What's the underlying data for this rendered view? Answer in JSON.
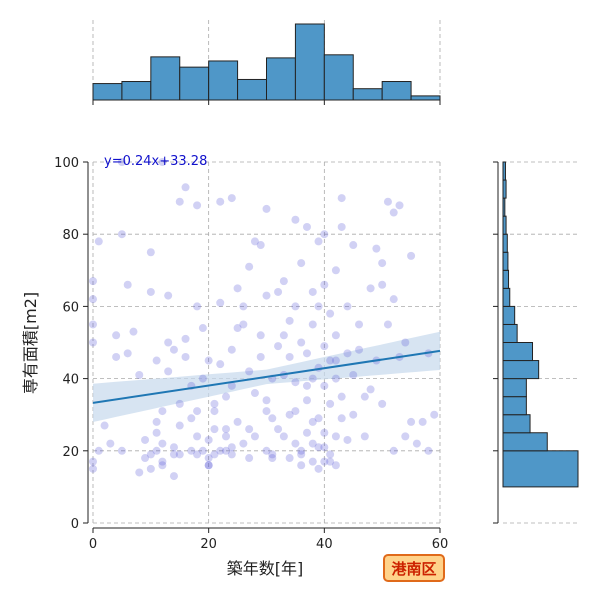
{
  "chart_data": {
    "type": "scatter",
    "x_label": "築年数[年]",
    "y_label": "専有面積[m2]",
    "xlim": [
      0,
      60
    ],
    "ylim": [
      0,
      100
    ],
    "x_ticks": [
      0,
      20,
      40,
      60
    ],
    "y_ticks": [
      0,
      20,
      40,
      60,
      80,
      100
    ],
    "grid": true,
    "regression": {
      "equation": "y=0.24x+33.28",
      "slope": 0.24,
      "intercept": 33.28,
      "color": "#1f77b4",
      "band_color": "#c6d9ec"
    },
    "point_color": "#5b5bd6",
    "hist_color": "#4f97c8",
    "badge": {
      "text": "港南区",
      "fill": "#ffd28a",
      "stroke": "#e06a1a"
    },
    "x_histogram": {
      "bin_edges": [
        0,
        5,
        10,
        15,
        20,
        25,
        30,
        35,
        40,
        45,
        50,
        55,
        60
      ],
      "counts": [
        16,
        18,
        42,
        32,
        38,
        20,
        41,
        74,
        44,
        11,
        18,
        4
      ]
    },
    "y_histogram": {
      "bin_edges": [
        0,
        10,
        20,
        30,
        40,
        50,
        60,
        70,
        80,
        90,
        100
      ],
      "counts": [
        0,
        122,
        72,
        44,
        38,
        58,
        48,
        23,
        19,
        5
      ],
      "extra_bins": [
        {
          "range": [
            60,
            65
          ],
          "count": 9
        },
        {
          "range": [
            65,
            70
          ],
          "count": 7
        },
        {
          "range": [
            70,
            80
          ],
          "count": 6
        },
        {
          "range": [
            80,
            90
          ],
          "count": 4
        },
        {
          "range": [
            90,
            100
          ],
          "count": 3
        }
      ]
    },
    "points": [
      [
        0,
        17
      ],
      [
        0,
        15
      ],
      [
        0,
        55
      ],
      [
        0,
        62
      ],
      [
        1,
        20
      ],
      [
        0,
        67
      ],
      [
        0,
        50
      ],
      [
        2,
        27
      ],
      [
        1,
        78
      ],
      [
        3,
        22
      ],
      [
        4,
        46
      ],
      [
        4,
        52
      ],
      [
        5,
        80
      ],
      [
        5,
        20
      ],
      [
        6,
        47
      ],
      [
        6,
        66
      ],
      [
        7,
        53
      ],
      [
        8,
        41
      ],
      [
        8,
        14
      ],
      [
        9,
        18
      ],
      [
        9,
        23
      ],
      [
        10,
        15
      ],
      [
        10,
        19
      ],
      [
        10,
        64
      ],
      [
        10,
        75
      ],
      [
        11,
        25
      ],
      [
        11,
        28
      ],
      [
        11,
        20
      ],
      [
        11,
        45
      ],
      [
        12,
        17
      ],
      [
        12,
        22
      ],
      [
        12,
        31
      ],
      [
        12,
        16
      ],
      [
        13,
        42
      ],
      [
        13,
        50
      ],
      [
        13,
        63
      ],
      [
        14,
        21
      ],
      [
        14,
        48
      ],
      [
        14,
        13
      ],
      [
        15,
        33
      ],
      [
        15,
        89
      ],
      [
        15,
        19
      ],
      [
        15,
        27
      ],
      [
        16,
        93
      ],
      [
        16,
        46
      ],
      [
        16,
        51
      ],
      [
        17,
        38
      ],
      [
        17,
        29
      ],
      [
        17,
        20
      ],
      [
        18,
        24
      ],
      [
        18,
        60
      ],
      [
        18,
        31
      ],
      [
        18,
        88
      ],
      [
        19,
        20
      ],
      [
        19,
        54
      ],
      [
        19,
        40
      ],
      [
        20,
        23
      ],
      [
        20,
        18
      ],
      [
        20,
        16
      ],
      [
        20,
        45
      ],
      [
        21,
        26
      ],
      [
        21,
        31
      ],
      [
        21,
        19
      ],
      [
        21,
        33
      ],
      [
        22,
        44
      ],
      [
        22,
        20
      ],
      [
        22,
        61
      ],
      [
        22,
        89
      ],
      [
        23,
        35
      ],
      [
        23,
        26
      ],
      [
        23,
        20
      ],
      [
        24,
        38
      ],
      [
        24,
        21
      ],
      [
        24,
        48
      ],
      [
        24,
        90
      ],
      [
        25,
        54
      ],
      [
        25,
        65
      ],
      [
        25,
        28
      ],
      [
        26,
        22
      ],
      [
        26,
        60
      ],
      [
        26,
        55
      ],
      [
        27,
        71
      ],
      [
        27,
        42
      ],
      [
        27,
        18
      ],
      [
        28,
        78
      ],
      [
        28,
        36
      ],
      [
        28,
        24
      ],
      [
        29,
        77
      ],
      [
        29,
        52
      ],
      [
        29,
        46
      ],
      [
        30,
        87
      ],
      [
        30,
        20
      ],
      [
        30,
        63
      ],
      [
        30,
        34
      ],
      [
        31,
        19
      ],
      [
        31,
        29
      ],
      [
        31,
        40
      ],
      [
        32,
        26
      ],
      [
        32,
        64
      ],
      [
        32,
        49
      ],
      [
        33,
        41
      ],
      [
        33,
        67
      ],
      [
        33,
        52
      ],
      [
        33,
        24
      ],
      [
        34,
        30
      ],
      [
        34,
        18
      ],
      [
        34,
        56
      ],
      [
        34,
        46
      ],
      [
        35,
        39
      ],
      [
        35,
        60
      ],
      [
        35,
        22
      ],
      [
        35,
        84
      ],
      [
        36,
        16
      ],
      [
        36,
        20
      ],
      [
        36,
        50
      ],
      [
        36,
        72
      ],
      [
        37,
        34
      ],
      [
        37,
        47
      ],
      [
        37,
        25
      ],
      [
        37,
        82
      ],
      [
        38,
        22
      ],
      [
        38,
        40
      ],
      [
        38,
        55
      ],
      [
        38,
        17
      ],
      [
        38,
        64
      ],
      [
        39,
        15
      ],
      [
        39,
        29
      ],
      [
        39,
        43
      ],
      [
        39,
        60
      ],
      [
        39,
        78
      ],
      [
        40,
        21
      ],
      [
        40,
        17
      ],
      [
        40,
        38
      ],
      [
        40,
        49
      ],
      [
        40,
        66
      ],
      [
        40,
        80
      ],
      [
        40,
        25
      ],
      [
        41,
        19
      ],
      [
        41,
        33
      ],
      [
        41,
        45
      ],
      [
        41,
        58
      ],
      [
        42,
        16
      ],
      [
        42,
        24
      ],
      [
        42,
        40
      ],
      [
        42,
        52
      ],
      [
        42,
        70
      ],
      [
        43,
        29
      ],
      [
        43,
        35
      ],
      [
        43,
        82
      ],
      [
        43,
        90
      ],
      [
        44,
        23
      ],
      [
        44,
        47
      ],
      [
        44,
        60
      ],
      [
        45,
        30
      ],
      [
        45,
        41
      ],
      [
        45,
        77
      ],
      [
        46,
        48
      ],
      [
        46,
        55
      ],
      [
        47,
        35
      ],
      [
        47,
        24
      ],
      [
        48,
        65
      ],
      [
        48,
        37
      ],
      [
        49,
        45
      ],
      [
        49,
        76
      ],
      [
        50,
        72
      ],
      [
        50,
        33
      ],
      [
        50,
        66
      ],
      [
        51,
        89
      ],
      [
        51,
        55
      ],
      [
        52,
        86
      ],
      [
        52,
        20
      ],
      [
        52,
        62
      ],
      [
        53,
        88
      ],
      [
        53,
        46
      ],
      [
        54,
        24
      ],
      [
        54,
        50
      ],
      [
        55,
        28
      ],
      [
        55,
        74
      ],
      [
        56,
        22
      ],
      [
        57,
        28
      ],
      [
        58,
        47
      ],
      [
        58,
        20
      ],
      [
        59,
        30
      ],
      [
        5,
        100
      ],
      [
        12,
        100
      ],
      [
        20,
        16
      ],
      [
        14,
        19
      ],
      [
        18,
        19
      ],
      [
        24,
        19
      ],
      [
        31,
        18
      ],
      [
        36,
        19
      ],
      [
        39,
        21
      ],
      [
        41,
        17
      ],
      [
        38,
        28
      ],
      [
        35,
        31
      ],
      [
        37,
        38
      ],
      [
        42,
        45
      ],
      [
        30,
        31
      ],
      [
        27,
        26
      ],
      [
        23,
        24
      ]
    ]
  }
}
